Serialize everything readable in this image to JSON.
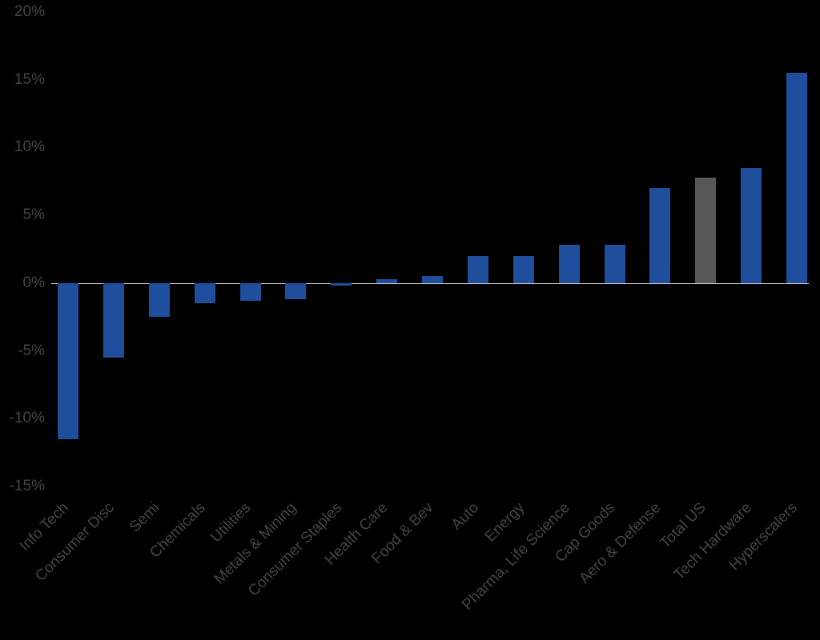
{
  "chart_data": {
    "type": "bar",
    "title": "",
    "xlabel": "",
    "ylabel": "",
    "categories": [
      "Info Tech",
      "Consumer Disc",
      "Semi",
      "Chemicals",
      "Utilities",
      "Metals & Mining",
      "Consumer Staples",
      "Health Care",
      "Food & Bev",
      "Auto",
      "Energy",
      "Pharma, Life Science",
      "Cap Goods",
      "Aero & Defense",
      "Total US",
      "Tech Hardware",
      "Hyperscalers"
    ],
    "values": [
      -11.5,
      -5.5,
      -2.5,
      -1.5,
      -1.3,
      -1.2,
      -0.2,
      0.3,
      0.5,
      2.0,
      2.0,
      2.8,
      2.8,
      7.0,
      7.8,
      8.5,
      15.5
    ],
    "highlight_category": "Total US",
    "bar_color": "#1e4e9c",
    "highlight_color": "#575757",
    "ylim": [
      -15,
      20
    ],
    "y_ticks": [
      20,
      15,
      10,
      5,
      0,
      -5,
      -10,
      -15
    ],
    "y_tick_suffix": "%",
    "grid": false,
    "legend": false,
    "zero_line_color": "#c9c9c9",
    "text_color": "#454545",
    "background_color": "#000000",
    "x_label_rotation_deg": -45
  }
}
